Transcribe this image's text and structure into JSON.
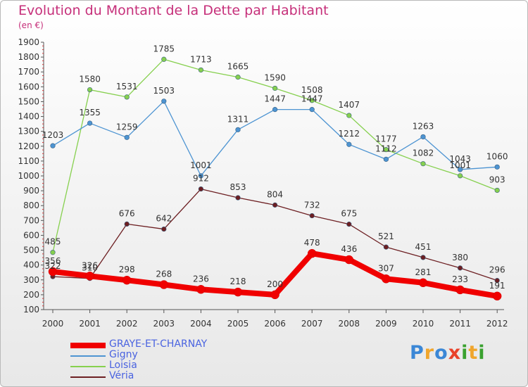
{
  "header": {
    "title": "Evolution du Montant de la Dette par Habitant",
    "unit": "(en €)"
  },
  "logo": {
    "letters": [
      {
        "ch": "P",
        "color": "#3b87d6"
      },
      {
        "ch": "r",
        "color": "#f0a52c"
      },
      {
        "ch": "o",
        "color": "#3b87d6"
      },
      {
        "ch": "x",
        "color": "#e9422a"
      },
      {
        "ch": "i",
        "color": "#3aa12f"
      },
      {
        "ch": "t",
        "color": "#f0a52c"
      },
      {
        "ch": "i",
        "color": "#3aa12f"
      }
    ]
  },
  "chart_data": {
    "type": "line",
    "x": [
      "2000",
      "2001",
      "2002",
      "2003",
      "2004",
      "2005",
      "2006",
      "2007",
      "2008",
      "2009",
      "2010",
      "2011",
      "2012"
    ],
    "ylim": [
      100,
      1900
    ],
    "yticks": [
      "100",
      "200",
      "300",
      "400",
      "500",
      "600",
      "700",
      "800",
      "900",
      "1000",
      "1100",
      "1200",
      "1300",
      "1400",
      "1500",
      "1600",
      "1700",
      "1800",
      "1900"
    ],
    "grid": false,
    "legend": "bottom-left",
    "series": [
      {
        "name": "Loisia",
        "color": "#86d04e",
        "width": 1.3,
        "values": [
          485,
          1580,
          1531,
          1785,
          1713,
          1665,
          1590,
          1508,
          1407,
          1177,
          1082,
          1001,
          903
        ]
      },
      {
        "name": "Gigny",
        "color": "#4d94d2",
        "width": 1.3,
        "values": [
          1203,
          1355,
          1259,
          1503,
          1001,
          1311,
          1447,
          1447,
          1212,
          1112,
          1263,
          1043,
          1060
        ]
      },
      {
        "name": "Véria",
        "color": "#6d1f22",
        "width": 1.3,
        "values": [
          322,
          310,
          676,
          642,
          912,
          853,
          804,
          732,
          675,
          521,
          451,
          380,
          296
        ]
      },
      {
        "name": "GRAYE-ET-CHARNAY",
        "color": "#f00000",
        "width": 8,
        "values": [
          356,
          326,
          298,
          268,
          236,
          218,
          200,
          478,
          436,
          307,
          281,
          233,
          191
        ]
      }
    ]
  }
}
